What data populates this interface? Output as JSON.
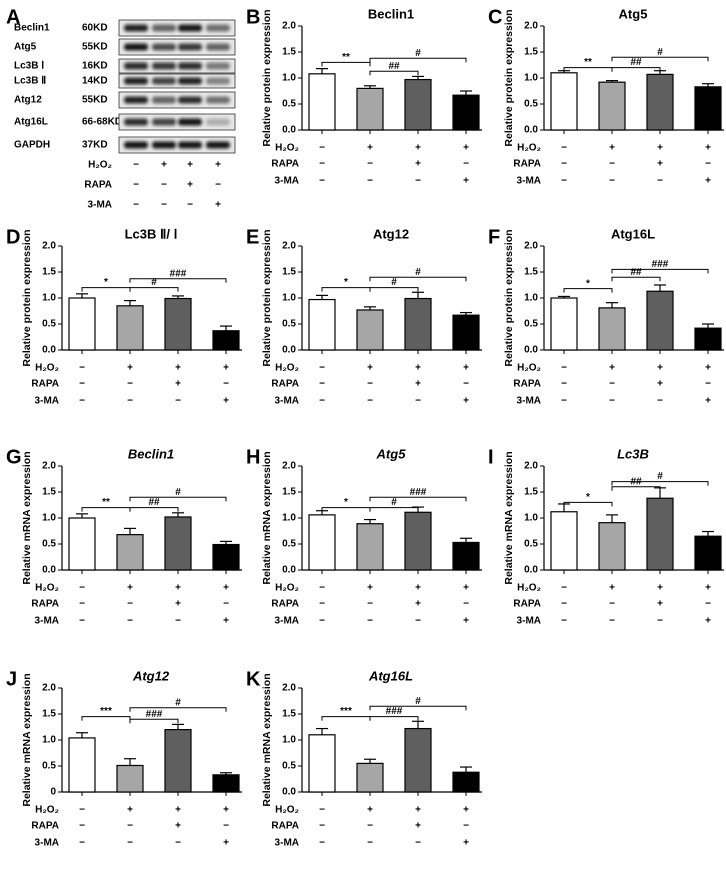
{
  "blot": {
    "letter": "A",
    "rows": [
      {
        "protein": "Beclin1",
        "size": "60KD"
      },
      {
        "protein": "Atg5",
        "size": "55KD"
      },
      {
        "protein": "Lc3B Ⅰ",
        "size": "16KD"
      },
      {
        "protein": "Lc3B Ⅱ",
        "size": "14KD"
      },
      {
        "protein": "Atg12",
        "size": "55KD"
      },
      {
        "protein": "Atg16L",
        "size": "66-68KD"
      },
      {
        "protein": "GAPDH",
        "size": "37KD"
      }
    ],
    "treatments": [
      {
        "name": "H₂O₂",
        "signs": [
          "−",
          "+",
          "+",
          "+"
        ]
      },
      {
        "name": "RAPA",
        "signs": [
          "−",
          "−",
          "+",
          "−"
        ]
      },
      {
        "name": "3-MA",
        "signs": [
          "−",
          "−",
          "−",
          "+"
        ]
      }
    ]
  },
  "chart_data": [
    {
      "type": "bar",
      "letter": "B",
      "title": "Beclin1",
      "italic_title": false,
      "y_label": "Relative protein expression",
      "values": [
        1.08,
        0.8,
        0.97,
        0.67
      ],
      "errors": [
        0.1,
        0.05,
        0.06,
        0.08
      ],
      "colors": [
        "#ffffff",
        "#a6a6a6",
        "#5f5f5f",
        "#000000"
      ],
      "ylim": [
        0,
        2
      ],
      "yticks": [
        {
          "value": 0,
          "label": "0.0"
        },
        0.5,
        {
          "value": 1,
          "label": "1.0"
        },
        1.5,
        {
          "value": 2,
          "label": "2.0"
        }
      ],
      "annotations": [
        "**",
        "##",
        "#"
      ],
      "treatments": [
        {
          "name": "H₂O₂",
          "signs": [
            "−",
            "+",
            "+",
            "+"
          ]
        },
        {
          "name": "RAPA",
          "signs": [
            "−",
            "−",
            "+",
            "−"
          ]
        },
        {
          "name": "3-MA",
          "signs": [
            "−",
            "−",
            "−",
            "+"
          ]
        }
      ]
    },
    {
      "type": "bar",
      "letter": "C",
      "title": "Atg5",
      "italic_title": false,
      "y_label": "Relative protein expression",
      "values": [
        1.1,
        0.92,
        1.07,
        0.83
      ],
      "errors": [
        0.04,
        0.03,
        0.07,
        0.06
      ],
      "colors": [
        "#ffffff",
        "#a6a6a6",
        "#5f5f5f",
        "#000000"
      ],
      "ylim": [
        0,
        2
      ],
      "yticks": [
        {
          "value": 0,
          "label": "0.0"
        },
        0.5,
        {
          "value": 1,
          "label": "1.0"
        },
        1.5,
        {
          "value": 2,
          "label": "2.0"
        }
      ],
      "annotations": [
        "**",
        "##",
        "#"
      ],
      "treatments": [
        {
          "name": "H₂O₂",
          "signs": [
            "−",
            "+",
            "+",
            "+"
          ]
        },
        {
          "name": "RAPA",
          "signs": [
            "−",
            "−",
            "+",
            "−"
          ]
        },
        {
          "name": "3-MA",
          "signs": [
            "−",
            "−",
            "−",
            "+"
          ]
        }
      ]
    },
    {
      "type": "bar",
      "letter": "D",
      "title": "Lc3B Ⅱ/ Ⅰ",
      "italic_title": false,
      "y_label": "Relative protein expression",
      "values": [
        1.0,
        0.85,
        0.99,
        0.37
      ],
      "errors": [
        0.08,
        0.1,
        0.05,
        0.09
      ],
      "colors": [
        "#ffffff",
        "#a6a6a6",
        "#5f5f5f",
        "#000000"
      ],
      "ylim": [
        0,
        2
      ],
      "yticks": [
        {
          "value": 0,
          "label": "0.0"
        },
        0.5,
        {
          "value": 1,
          "label": "1.0"
        },
        1.5,
        {
          "value": 2,
          "label": "2.0"
        }
      ],
      "annotations": [
        "*",
        "#",
        "###"
      ],
      "treatments": [
        {
          "name": "H₂O₂",
          "signs": [
            "−",
            "+",
            "+",
            "+"
          ]
        },
        {
          "name": "RAPA",
          "signs": [
            "−",
            "−",
            "+",
            "−"
          ]
        },
        {
          "name": "3-MA",
          "signs": [
            "−",
            "−",
            "−",
            "+"
          ]
        }
      ]
    },
    {
      "type": "bar",
      "letter": "E",
      "title": "Atg12",
      "italic_title": false,
      "y_label": "Relative protein expression",
      "values": [
        0.97,
        0.77,
        0.99,
        0.67
      ],
      "errors": [
        0.08,
        0.06,
        0.12,
        0.05
      ],
      "colors": [
        "#ffffff",
        "#a6a6a6",
        "#5f5f5f",
        "#000000"
      ],
      "ylim": [
        0,
        2
      ],
      "yticks": [
        {
          "value": 0,
          "label": "0.0"
        },
        0.5,
        {
          "value": 1,
          "label": "1.0"
        },
        1.5,
        {
          "value": 2,
          "label": "2.0"
        }
      ],
      "annotations": [
        "*",
        "#",
        "#"
      ],
      "treatments": [
        {
          "name": "H₂O₂",
          "signs": [
            "−",
            "+",
            "+",
            "+"
          ]
        },
        {
          "name": "RAPA",
          "signs": [
            "−",
            "−",
            "+",
            "−"
          ]
        },
        {
          "name": "3-MA",
          "signs": [
            "−",
            "−",
            "−",
            "+"
          ]
        }
      ]
    },
    {
      "type": "bar",
      "letter": "F",
      "title": "Atg16L",
      "italic_title": false,
      "y_label": "Relative protein expression",
      "values": [
        1.0,
        0.81,
        1.13,
        0.42
      ],
      "errors": [
        0.03,
        0.1,
        0.12,
        0.08
      ],
      "colors": [
        "#ffffff",
        "#a6a6a6",
        "#5f5f5f",
        "#000000"
      ],
      "ylim": [
        0,
        2
      ],
      "yticks": [
        {
          "value": 0,
          "label": "0.0"
        },
        0.5,
        {
          "value": 1,
          "label": "1.0"
        },
        1.5,
        {
          "value": 2,
          "label": "2.0"
        }
      ],
      "annotations": [
        "*",
        "##",
        "###"
      ],
      "treatments": [
        {
          "name": "H₂O₂",
          "signs": [
            "−",
            "+",
            "+",
            "+"
          ]
        },
        {
          "name": "RAPA",
          "signs": [
            "−",
            "−",
            "+",
            "−"
          ]
        },
        {
          "name": "3-MA",
          "signs": [
            "−",
            "−",
            "−",
            "+"
          ]
        }
      ]
    },
    {
      "type": "bar",
      "letter": "G",
      "title": "Beclin1",
      "italic_title": true,
      "y_label": "Relative mRNA expression",
      "values": [
        1.0,
        0.68,
        1.02,
        0.49
      ],
      "errors": [
        0.08,
        0.12,
        0.08,
        0.06
      ],
      "colors": [
        "#ffffff",
        "#a6a6a6",
        "#5f5f5f",
        "#000000"
      ],
      "ylim": [
        0,
        2
      ],
      "yticks": [
        {
          "value": 0,
          "label": "0.0"
        },
        0.5,
        {
          "value": 1,
          "label": "1.0"
        },
        1.5,
        {
          "value": 2,
          "label": "2.0"
        }
      ],
      "annotations": [
        "**",
        "##",
        "#"
      ],
      "treatments": [
        {
          "name": "H₂O₂",
          "signs": [
            "−",
            "+",
            "+",
            "+"
          ]
        },
        {
          "name": "RAPA",
          "signs": [
            "−",
            "−",
            "+",
            "−"
          ]
        },
        {
          "name": "3-MA",
          "signs": [
            "−",
            "−",
            "−",
            "+"
          ]
        }
      ]
    },
    {
      "type": "bar",
      "letter": "H",
      "title": "Atg5",
      "italic_title": true,
      "y_label": "Relative mRNA expression",
      "values": [
        1.06,
        0.89,
        1.11,
        0.53
      ],
      "errors": [
        0.08,
        0.08,
        0.1,
        0.08
      ],
      "colors": [
        "#ffffff",
        "#a6a6a6",
        "#5f5f5f",
        "#000000"
      ],
      "ylim": [
        0,
        2
      ],
      "yticks": [
        {
          "value": 0,
          "label": "0.0"
        },
        0.5,
        {
          "value": 1,
          "label": "1.0"
        },
        1.5,
        {
          "value": 2,
          "label": "2.0"
        }
      ],
      "annotations": [
        "*",
        "#",
        "###"
      ],
      "treatments": [
        {
          "name": "H₂O₂",
          "signs": [
            "−",
            "+",
            "+",
            "+"
          ]
        },
        {
          "name": "RAPA",
          "signs": [
            "−",
            "−",
            "+",
            "−"
          ]
        },
        {
          "name": "3-MA",
          "signs": [
            "−",
            "−",
            "−",
            "+"
          ]
        }
      ]
    },
    {
      "type": "bar",
      "letter": "I",
      "title": "Lc3B",
      "italic_title": true,
      "y_label": "Relative mRNA expression",
      "values": [
        1.12,
        0.91,
        1.38,
        0.65
      ],
      "errors": [
        0.15,
        0.15,
        0.2,
        0.09
      ],
      "colors": [
        "#ffffff",
        "#a6a6a6",
        "#5f5f5f",
        "#000000"
      ],
      "ylim": [
        0,
        2
      ],
      "yticks": [
        {
          "value": 0,
          "label": "0.0"
        },
        0.5,
        {
          "value": 1,
          "label": "1.0"
        },
        1.5,
        {
          "value": 2,
          "label": "2.0"
        }
      ],
      "annotations": [
        "*",
        "##",
        "#"
      ],
      "treatments": [
        {
          "name": "H₂O₂",
          "signs": [
            "−",
            "+",
            "+",
            "+"
          ]
        },
        {
          "name": "RAPA",
          "signs": [
            "−",
            "−",
            "+",
            "−"
          ]
        },
        {
          "name": "3-MA",
          "signs": [
            "−",
            "−",
            "−",
            "+"
          ]
        }
      ]
    },
    {
      "type": "bar",
      "letter": "J",
      "title": "Atg12",
      "italic_title": true,
      "y_label": "Relative mRNA expression",
      "values": [
        1.04,
        0.51,
        1.2,
        0.33
      ],
      "errors": [
        0.1,
        0.13,
        0.1,
        0.04
      ],
      "colors": [
        "#ffffff",
        "#a6a6a6",
        "#5f5f5f",
        "#000000"
      ],
      "ylim": [
        0,
        2
      ],
      "yticks": [
        0,
        0.5,
        {
          "value": 1,
          "label": "1.0"
        },
        1.5,
        {
          "value": 2,
          "label": "2.0"
        }
      ],
      "annotations": [
        "***",
        "###",
        "#"
      ],
      "treatments": [
        {
          "name": "H₂O₂",
          "signs": [
            "−",
            "+",
            "+",
            "+"
          ]
        },
        {
          "name": "RAPA",
          "signs": [
            "−",
            "−",
            "+",
            "−"
          ]
        },
        {
          "name": "3-MA",
          "signs": [
            "−",
            "−",
            "−",
            "+"
          ]
        }
      ]
    },
    {
      "type": "bar",
      "letter": "K",
      "title": "Atg16L",
      "italic_title": true,
      "y_label": "Relative mRNA expression",
      "values": [
        1.1,
        0.55,
        1.22,
        0.38
      ],
      "errors": [
        0.12,
        0.08,
        0.14,
        0.1
      ],
      "colors": [
        "#ffffff",
        "#a6a6a6",
        "#5f5f5f",
        "#000000"
      ],
      "ylim": [
        0,
        2
      ],
      "yticks": [
        {
          "value": 0,
          "label": "0.0"
        },
        0.5,
        {
          "value": 1,
          "label": "1.0"
        },
        1.5,
        {
          "value": 2,
          "label": "2.0"
        }
      ],
      "annotations": [
        "***",
        "###",
        "#"
      ],
      "treatments": [
        {
          "name": "H₂O₂",
          "signs": [
            "−",
            "+",
            "+",
            "+"
          ]
        },
        {
          "name": "RAPA",
          "signs": [
            "−",
            "−",
            "+",
            "−"
          ]
        },
        {
          "name": "3-MA",
          "signs": [
            "−",
            "−",
            "−",
            "+"
          ]
        }
      ]
    }
  ]
}
